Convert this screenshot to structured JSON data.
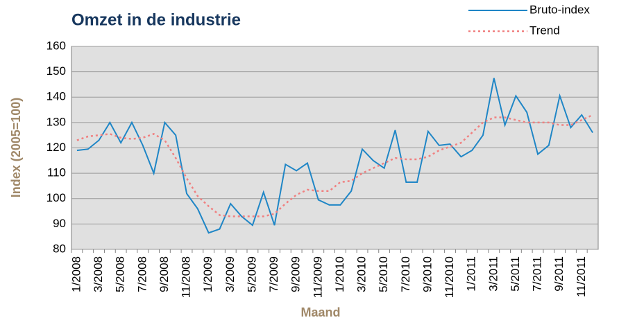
{
  "chart_data": {
    "type": "line",
    "title": "Omzet in de industrie",
    "y_label": "Index (2005=100)",
    "x_label": "Maand",
    "categories": [
      "1/2008",
      null,
      "3/2008",
      null,
      "5/2008",
      null,
      "7/2008",
      null,
      "9/2008",
      null,
      "11/2008",
      null,
      "1/2009",
      null,
      "3/2009",
      null,
      "5/2009",
      null,
      "7/2009",
      null,
      "9/2009",
      null,
      "11/2009",
      null,
      "1/2010",
      null,
      "3/2010",
      null,
      "5/2010",
      null,
      "7/2010",
      null,
      "9/2010",
      null,
      "11/2010",
      null,
      "1/2011",
      null,
      "3/2011",
      null,
      "5/2011",
      null,
      "7/2011",
      null,
      "9/2011",
      null,
      "11/2011",
      null
    ],
    "series": [
      {
        "name": "Bruto-index",
        "color": "#1f86c6",
        "dash": false,
        "values": [
          119,
          119.5,
          123,
          130,
          122,
          130,
          121,
          110,
          130,
          125,
          102,
          96,
          86.5,
          88,
          98,
          93,
          89.5,
          102.5,
          89.5,
          113.5,
          111,
          114,
          99.5,
          97.5,
          97.5,
          103,
          119.5,
          115,
          112,
          127,
          106.5,
          106.5,
          126.5,
          121,
          121.5,
          116.5,
          119,
          125,
          147.5,
          129,
          140.5,
          134,
          117.5,
          121,
          140.5,
          128,
          133,
          126
        ]
      },
      {
        "name": "Trend",
        "color": "#f08080",
        "dash": true,
        "values": [
          123,
          124.5,
          125,
          125.5,
          124,
          123.5,
          124,
          125.5,
          123,
          116,
          108,
          101,
          97,
          93.5,
          93,
          93,
          93,
          93,
          94,
          98,
          101.5,
          103.5,
          103,
          103,
          106.5,
          107,
          110,
          112,
          114,
          116,
          115.5,
          115.5,
          116.5,
          119,
          120.5,
          122,
          126,
          130,
          132,
          132,
          131,
          130,
          130,
          130,
          129,
          129,
          131,
          133
        ]
      }
    ],
    "ylim": [
      80,
      160
    ],
    "yticks": [
      80,
      90,
      100,
      110,
      120,
      130,
      140,
      150,
      160
    ],
    "grid": true,
    "legend": "top-right"
  }
}
